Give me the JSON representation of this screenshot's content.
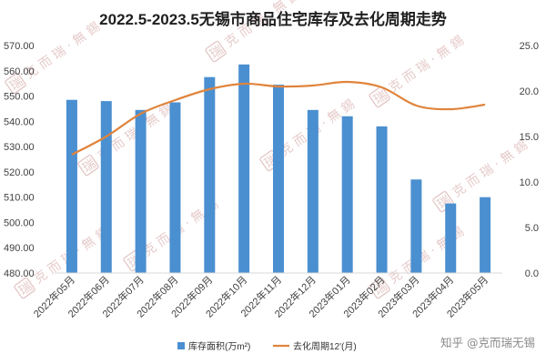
{
  "chart_data": {
    "type": "bar+line",
    "title": "2022.5-2023.5无锡市商品住宅库存及去化周期走势",
    "categories": [
      "2022年05月",
      "2022年06月",
      "2022年07月",
      "2022年08月",
      "2022年09月",
      "2022年10月",
      "2022年11月",
      "2022年12月",
      "2023年01月",
      "2023年02月",
      "2023年03月",
      "2023年04月",
      "2023年05月"
    ],
    "series": [
      {
        "name": "库存面积(万m²)",
        "type": "bar",
        "axis": "left",
        "color": "#4a8fd0",
        "values": [
          548.5,
          548.0,
          544.5,
          547.5,
          557.5,
          562.5,
          554.5,
          544.5,
          542.0,
          538.0,
          517.0,
          507.5,
          510.0
        ]
      },
      {
        "name": "去化周期12'(月)",
        "type": "line",
        "axis": "right",
        "color": "#e0843c",
        "values": [
          13.0,
          15.0,
          17.5,
          19.0,
          20.2,
          20.8,
          20.5,
          20.6,
          21.0,
          20.4,
          18.4,
          18.0,
          18.5
        ]
      }
    ],
    "y_left": {
      "min": 480,
      "max": 570,
      "step": 10,
      "ticks": [
        "480.00",
        "490.00",
        "500.00",
        "510.00",
        "520.00",
        "530.00",
        "540.00",
        "550.00",
        "560.00",
        "570.00"
      ]
    },
    "y_right": {
      "min": 0,
      "max": 25,
      "step": 5,
      "ticks": [
        "0.0",
        "5.0",
        "10.0",
        "15.0",
        "20.0",
        "25.0"
      ]
    },
    "legend_position": "bottom"
  },
  "watermark": {
    "text": "克 而 瑞 · 無 錫",
    "stamp": "瑞"
  },
  "credit": "知乎 @克而瑞无锡"
}
